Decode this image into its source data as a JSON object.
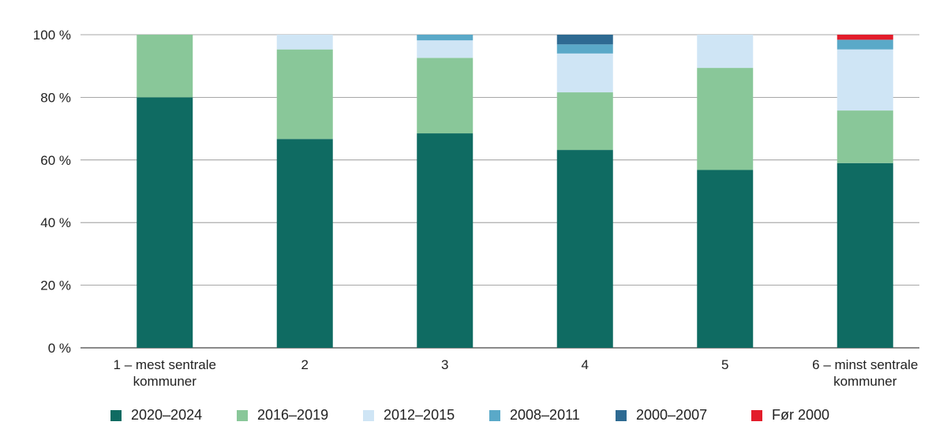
{
  "chart_data": {
    "type": "bar",
    "stacked": true,
    "categories": [
      [
        "1 – mest sentrale",
        "kommuner"
      ],
      [
        "2"
      ],
      [
        "3"
      ],
      [
        "4"
      ],
      [
        "5"
      ],
      [
        "6 – minst sentrale",
        "kommuner"
      ]
    ],
    "ylim": [
      0,
      100
    ],
    "yticks": [
      "0 %",
      "20 %",
      "40 %",
      "60 %",
      "80 %",
      "100 %"
    ],
    "grid": true,
    "legend_position": "bottom",
    "series": [
      {
        "name": "2020–2024",
        "color": "#0f6b62",
        "values": [
          80.0,
          66.7,
          68.5,
          63.2,
          56.8,
          59.0
        ]
      },
      {
        "name": "2016–2019",
        "color": "#89c799",
        "values": [
          20.0,
          28.6,
          24.1,
          18.4,
          32.6,
          16.8
        ]
      },
      {
        "name": "2012–2015",
        "color": "#cfe5f5",
        "values": [
          0.0,
          4.7,
          5.6,
          12.4,
          10.6,
          19.5
        ]
      },
      {
        "name": "2008–2011",
        "color": "#5aa9c8",
        "values": [
          0.0,
          0.0,
          1.8,
          2.9,
          0.0,
          3.1
        ]
      },
      {
        "name": "2000–2007",
        "color": "#2e6a92",
        "values": [
          0.0,
          0.0,
          0.0,
          3.1,
          0.0,
          0.0
        ]
      },
      {
        "name": "Før 2000",
        "color": "#e31d2b",
        "values": [
          0.0,
          0.0,
          0.0,
          0.0,
          0.0,
          1.6
        ]
      }
    ]
  }
}
